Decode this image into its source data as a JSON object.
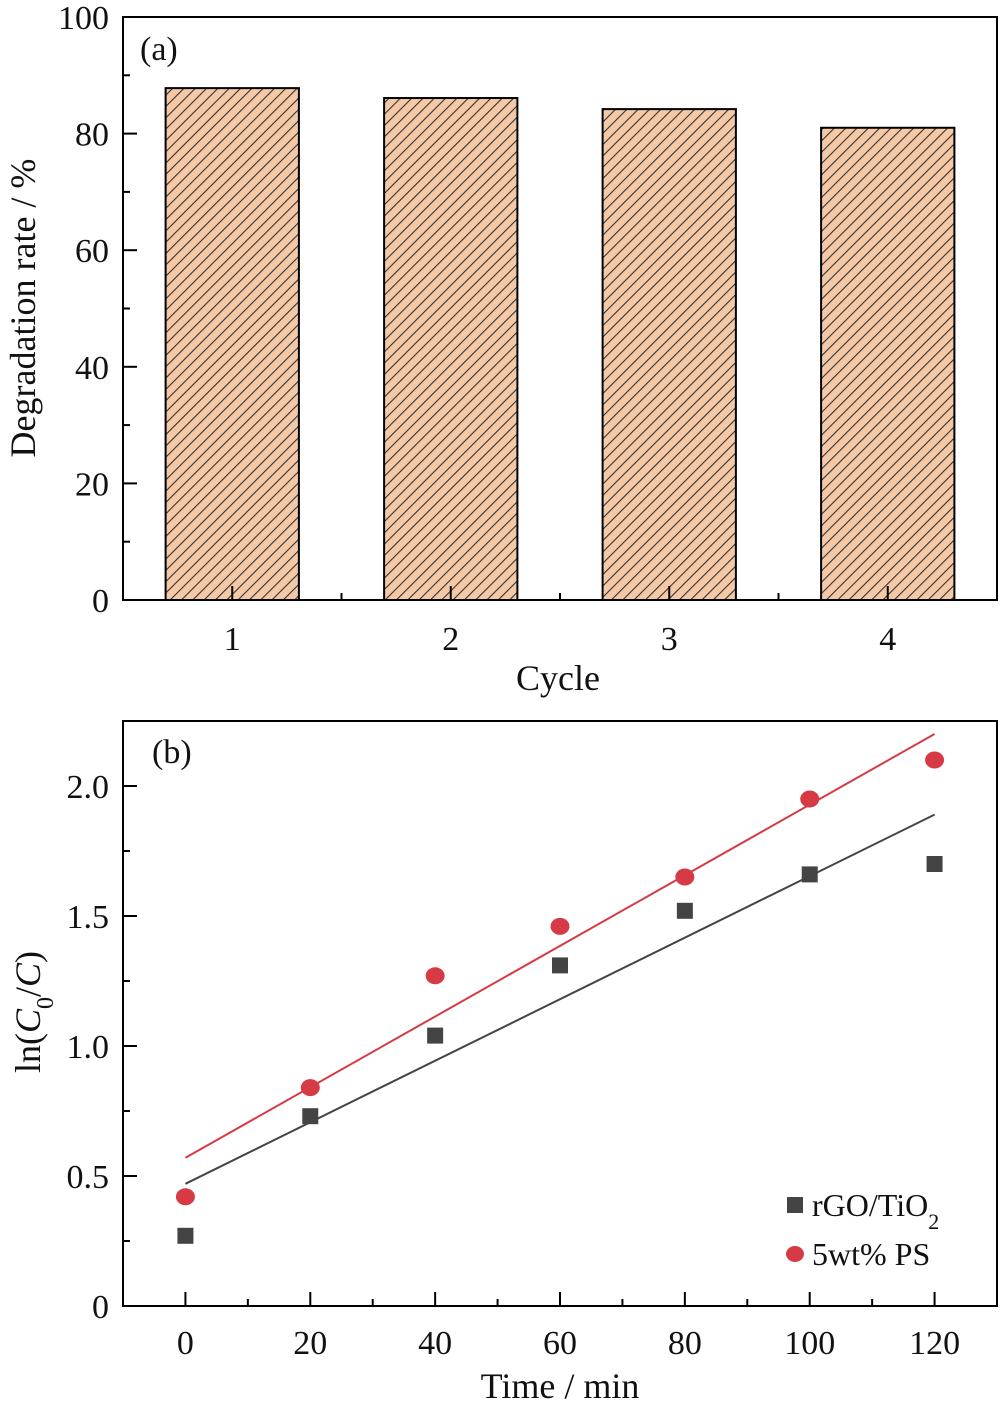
{
  "chart_data": [
    {
      "type": "bar",
      "panel_label": "(a)",
      "categories": [
        "1",
        "2",
        "3",
        "4"
      ],
      "values": [
        87.8,
        86.1,
        84.2,
        81.0
      ],
      "xlabel": "Cycle",
      "ylabel": "Degradation rate / %",
      "ylim": [
        0,
        100
      ],
      "yticks": [
        "0",
        "20",
        "40",
        "60",
        "80",
        "100"
      ],
      "grid": false,
      "bar_color": "#f6c9a6",
      "hatch_color": "#333333"
    },
    {
      "type": "scatter",
      "panel_label": "(b)",
      "xlabel": "Time / min",
      "ylabel": "ln(C0/C)",
      "xlim": [
        -10,
        130
      ],
      "ylim": [
        0,
        2.25
      ],
      "xticks": [
        "0",
        "20",
        "40",
        "60",
        "80",
        "100",
        "120"
      ],
      "yticks": [
        "0",
        "0.5",
        "1.0",
        "1.5",
        "2.0"
      ],
      "legend_position": "bottom-right",
      "grid": false,
      "series": [
        {
          "name": "rGO/TiO2",
          "marker": "square",
          "color": "#444444",
          "x": [
            0,
            20,
            40,
            60,
            80,
            100,
            120
          ],
          "y": [
            0.27,
            0.73,
            1.04,
            1.31,
            1.52,
            1.66,
            1.7
          ],
          "fit": {
            "x": [
              0,
              120
            ],
            "y": [
              0.47,
              1.89
            ]
          }
        },
        {
          "name": "5wt% PS",
          "marker": "circle",
          "color": "#d53a45",
          "x": [
            0,
            20,
            40,
            60,
            80,
            100,
            120
          ],
          "y": [
            0.42,
            0.84,
            1.27,
            1.46,
            1.65,
            1.95,
            2.1
          ],
          "fit": {
            "x": [
              0,
              120
            ],
            "y": [
              0.57,
              2.2
            ]
          }
        }
      ]
    }
  ]
}
